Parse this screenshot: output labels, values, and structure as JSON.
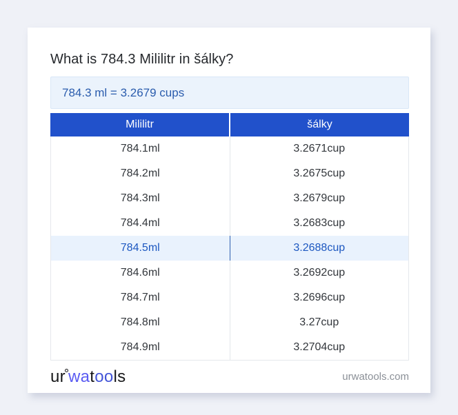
{
  "page": {
    "title": "What is 784.3 Mililitr in šálky?",
    "result": "784.3 ml = 3.2679 cups"
  },
  "table": {
    "columns": [
      "Mililitr",
      "šálky"
    ],
    "rows": [
      [
        "784.1ml",
        "3.2671cup"
      ],
      [
        "784.2ml",
        "3.2675cup"
      ],
      [
        "784.3ml",
        "3.2679cup"
      ],
      [
        "784.4ml",
        "3.2683cup"
      ],
      [
        "784.5ml",
        "3.2688cup"
      ],
      [
        "784.6ml",
        "3.2692cup"
      ],
      [
        "784.7ml",
        "3.2696cup"
      ],
      [
        "784.8ml",
        "3.27cup"
      ],
      [
        "784.9ml",
        "3.2704cup"
      ]
    ],
    "highlighted_row": 4
  },
  "footer": {
    "logo": {
      "ur": "ur",
      "wa": "wa",
      "t": "t",
      "oo": "oo",
      "ls": "ls"
    },
    "site": "urwatools.com"
  },
  "colors": {
    "page-bg": "#eff1f7",
    "card-bg": "#ffffff",
    "title-text": "#25282c",
    "result-bg": "#ebf3fc",
    "result-border": "#d9e7f7",
    "result-text": "#2a5cad",
    "header-bg": "#2151cb",
    "header-text": "#ffffff",
    "cell-text": "#32363b",
    "cell-divider": "#e3e7ea",
    "table-border": "#e5e8ec",
    "hl-bg": "#e9f2fd",
    "hl-text": "#1c57c0",
    "hl-divider": "#2f5fb0",
    "logo-dark": "#17181a",
    "logo-violet": "#5a5bf2",
    "logo-blue": "#4355d8",
    "footer-text": "#8b9097"
  }
}
